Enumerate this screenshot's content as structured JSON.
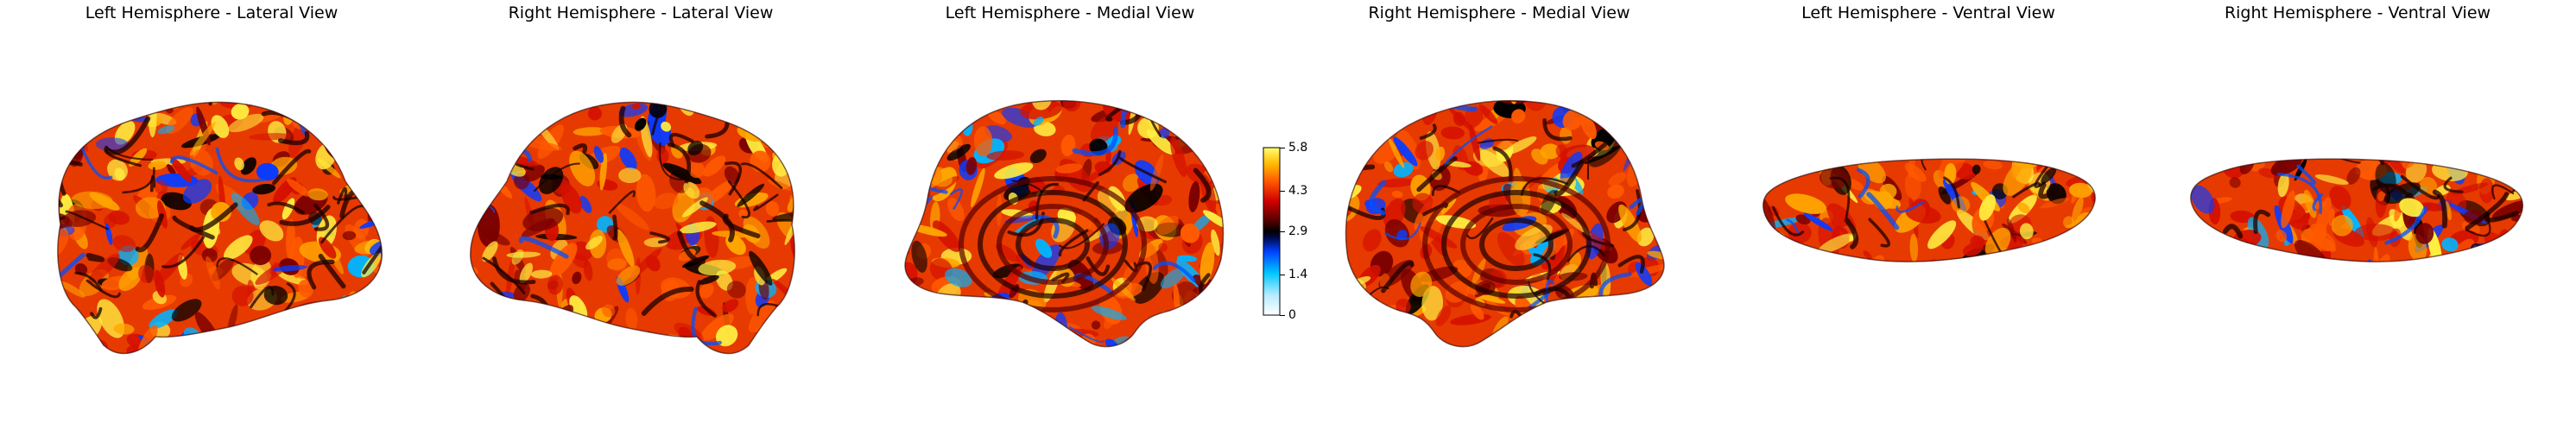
{
  "views": [
    {
      "title": "Left Hemisphere - Lateral View",
      "shape": "lateral",
      "mirror": false,
      "seed": 11
    },
    {
      "title": "Right Hemisphere - Lateral View",
      "shape": "lateral",
      "mirror": true,
      "seed": 23
    },
    {
      "title": "Left Hemisphere - Medial View",
      "shape": "medial",
      "mirror": true,
      "seed": 37
    },
    {
      "title": "Right Hemisphere - Medial View",
      "shape": "medial",
      "mirror": false,
      "seed": 41
    },
    {
      "title": "Left Hemisphere - Ventral View",
      "shape": "ventral",
      "mirror": false,
      "seed": 53
    },
    {
      "title": "Right Hemisphere - Ventral View",
      "shape": "ventral",
      "mirror": true,
      "seed": 67
    }
  ],
  "colorbar": {
    "colormap": "cold_hot",
    "min": 0,
    "max": 5.8,
    "ticks": [
      "5.8",
      "4.3",
      "2.9",
      "1.4",
      "0"
    ],
    "tick_values": [
      5.8,
      4.3,
      2.9,
      1.4,
      0
    ]
  }
}
